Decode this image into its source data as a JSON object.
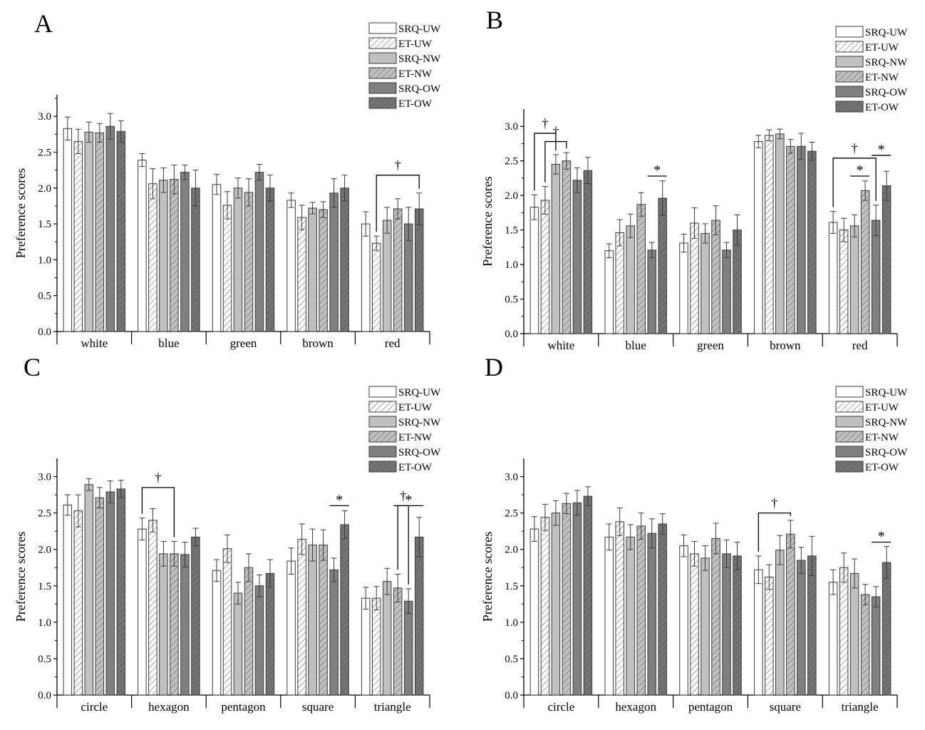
{
  "figure": {
    "series": [
      {
        "name": "SRQ-UW",
        "fill": "#ffffff",
        "hatch": false
      },
      {
        "name": "ET-UW",
        "fill": "#ffffff",
        "hatch": true
      },
      {
        "name": "SRQ-NW",
        "fill": "#c0c0c0",
        "hatch": false
      },
      {
        "name": "ET-NW",
        "fill": "#c0c0c0",
        "hatch": true
      },
      {
        "name": "SRQ-OW",
        "fill": "#808080",
        "hatch": false
      },
      {
        "name": "ET-OW",
        "fill": "#737373",
        "hatch": true
      }
    ],
    "colors": {
      "axis": "#000000",
      "bar_edge": "#3a3a3a",
      "hatch_line": "#555555",
      "error_bar": "#3a3a3a"
    }
  },
  "chart_data": [
    {
      "panel": "A",
      "type": "bar",
      "ylabel": "Preference scores",
      "xlabel": "",
      "ylim": [
        0,
        3.3
      ],
      "yticks": [
        "0.0",
        "0.5",
        "1.0",
        "1.5",
        "2.0",
        "2.5",
        "3.0"
      ],
      "categories": [
        "white",
        "blue",
        "green",
        "brown",
        "red"
      ],
      "series": [
        {
          "name": "SRQ-UW",
          "values": [
            2.83,
            2.39,
            2.05,
            1.83,
            1.5
          ],
          "errors": [
            0.16,
            0.09,
            0.14,
            0.1,
            0.17
          ]
        },
        {
          "name": "ET-UW",
          "values": [
            2.65,
            2.06,
            1.76,
            1.59,
            1.23
          ],
          "errors": [
            0.17,
            0.21,
            0.19,
            0.17,
            0.1
          ]
        },
        {
          "name": "SRQ-NW",
          "values": [
            2.78,
            2.11,
            2.0,
            1.72,
            1.55
          ],
          "errors": [
            0.14,
            0.17,
            0.14,
            0.08,
            0.18
          ]
        },
        {
          "name": "ET-NW",
          "values": [
            2.77,
            2.12,
            1.94,
            1.7,
            1.71
          ],
          "errors": [
            0.13,
            0.2,
            0.19,
            0.11,
            0.14
          ]
        },
        {
          "name": "SRQ-OW",
          "values": [
            2.86,
            2.22,
            2.22,
            1.93,
            1.5
          ],
          "errors": [
            0.18,
            0.1,
            0.11,
            0.2,
            0.23
          ]
        },
        {
          "name": "ET-OW",
          "values": [
            2.79,
            2.0,
            2.0,
            2.0,
            1.71
          ],
          "errors": [
            0.15,
            0.25,
            0.18,
            0.18,
            0.22
          ]
        }
      ],
      "annotations": [
        {
          "label": "†",
          "kind": "bracket",
          "category": "red",
          "from": "ET-UW",
          "to": "ET-OW",
          "at": 2.18
        }
      ]
    },
    {
      "panel": "B",
      "type": "bar",
      "ylabel": "Preference scores",
      "xlabel": "",
      "ylim": [
        0,
        3.25
      ],
      "yticks": [
        "0.0",
        "0.5",
        "1.0",
        "1.5",
        "2.0",
        "2.5",
        "3.0"
      ],
      "categories": [
        "white",
        "blue",
        "green",
        "brown",
        "red"
      ],
      "series": [
        {
          "name": "SRQ-UW",
          "values": [
            1.83,
            1.2,
            1.31,
            2.78,
            1.61
          ],
          "errors": [
            0.18,
            0.1,
            0.13,
            0.09,
            0.16
          ]
        },
        {
          "name": "ET-UW",
          "values": [
            1.93,
            1.46,
            1.6,
            2.87,
            1.5
          ],
          "errors": [
            0.2,
            0.19,
            0.22,
            0.08,
            0.17
          ]
        },
        {
          "name": "SRQ-NW",
          "values": [
            2.45,
            1.56,
            1.45,
            2.89,
            1.56
          ],
          "errors": [
            0.14,
            0.17,
            0.14,
            0.07,
            0.16
          ]
        },
        {
          "name": "ET-NW",
          "values": [
            2.5,
            1.87,
            1.64,
            2.71,
            2.07
          ],
          "errors": [
            0.12,
            0.17,
            0.21,
            0.1,
            0.14
          ]
        },
        {
          "name": "SRQ-OW",
          "values": [
            2.22,
            1.21,
            1.21,
            2.71,
            1.64
          ],
          "errors": [
            0.18,
            0.11,
            0.11,
            0.19,
            0.22
          ]
        },
        {
          "name": "ET-OW",
          "values": [
            2.36,
            1.96,
            1.5,
            2.64,
            2.14
          ],
          "errors": [
            0.19,
            0.25,
            0.22,
            0.13,
            0.21
          ]
        }
      ],
      "annotations": [
        {
          "label": "†",
          "kind": "bracket",
          "category": "white",
          "from": "SRQ-UW",
          "to": "SRQ-NW",
          "at": 2.9
        },
        {
          "label": "†",
          "kind": "bracket",
          "category": "white",
          "from": "ET-UW",
          "to": "ET-NW",
          "at": 2.78
        },
        {
          "label": "*",
          "kind": "line",
          "category": "blue",
          "from": "SRQ-OW",
          "to": "ET-OW",
          "at": 2.28
        },
        {
          "label": "†",
          "kind": "bracket",
          "category": "red",
          "from": "SRQ-UW",
          "to": "SRQ-OW",
          "at": 2.54
        },
        {
          "label": "*",
          "kind": "line",
          "category": "red",
          "from": "SRQ-NW",
          "to": "ET-NW",
          "at": 2.28
        },
        {
          "label": "*",
          "kind": "line",
          "category": "red",
          "from": "SRQ-OW",
          "to": "ET-OW",
          "at": 2.58
        }
      ]
    },
    {
      "panel": "C",
      "type": "bar",
      "ylabel": "Preference scores",
      "xlabel": "",
      "ylim": [
        0,
        3.25
      ],
      "yticks": [
        "0.0",
        "0.5",
        "1.0",
        "1.5",
        "2.0",
        "2.5",
        "3.0"
      ],
      "categories": [
        "circle",
        "hexagon",
        "pentagon",
        "square",
        "triangle"
      ],
      "series": [
        {
          "name": "SRQ-UW",
          "values": [
            2.61,
            2.28,
            1.71,
            1.84,
            1.33
          ],
          "errors": [
            0.14,
            0.15,
            0.15,
            0.18,
            0.15
          ]
        },
        {
          "name": "ET-UW",
          "values": [
            2.53,
            2.4,
            2.01,
            2.14,
            1.33
          ],
          "errors": [
            0.22,
            0.16,
            0.19,
            0.21,
            0.16
          ]
        },
        {
          "name": "SRQ-NW",
          "values": [
            2.89,
            1.94,
            1.4,
            2.06,
            1.56
          ],
          "errors": [
            0.08,
            0.17,
            0.15,
            0.22,
            0.18
          ]
        },
        {
          "name": "ET-NW",
          "values": [
            2.71,
            1.94,
            1.75,
            2.06,
            1.47
          ],
          "errors": [
            0.14,
            0.17,
            0.19,
            0.21,
            0.19
          ]
        },
        {
          "name": "SRQ-OW",
          "values": [
            2.79,
            1.93,
            1.5,
            1.72,
            1.29
          ],
          "errors": [
            0.15,
            0.17,
            0.15,
            0.16,
            0.17
          ]
        },
        {
          "name": "ET-OW",
          "values": [
            2.83,
            2.17,
            1.67,
            2.34,
            2.17
          ],
          "errors": [
            0.12,
            0.12,
            0.19,
            0.19,
            0.27
          ]
        }
      ],
      "annotations": [
        {
          "label": "†",
          "kind": "bracket",
          "category": "hexagon",
          "from": "SRQ-UW",
          "to": "ET-NW",
          "at": 2.85
        },
        {
          "label": "*",
          "kind": "line",
          "category": "square",
          "from": "SRQ-OW",
          "to": "ET-OW",
          "at": 2.6
        },
        {
          "label": "†",
          "kind": "bracket",
          "category": "triangle",
          "from": "SRQ-OW",
          "to": "ET-NW",
          "at": 2.6
        },
        {
          "label": "*",
          "kind": "line",
          "category": "triangle",
          "from": "ET-NW",
          "to": "ET-OW",
          "at": 2.6
        }
      ]
    },
    {
      "panel": "D",
      "type": "bar",
      "ylabel": "Preference scores",
      "xlabel": "",
      "ylim": [
        0,
        3.25
      ],
      "yticks": [
        "0.0",
        "0.5",
        "1.0",
        "1.5",
        "2.0",
        "2.5",
        "3.0"
      ],
      "categories": [
        "circle",
        "hexagon",
        "pentagon",
        "square",
        "triangle"
      ],
      "series": [
        {
          "name": "SRQ-UW",
          "values": [
            2.28,
            2.17,
            2.05,
            1.72,
            1.55
          ],
          "errors": [
            0.17,
            0.18,
            0.15,
            0.19,
            0.17
          ]
        },
        {
          "name": "ET-UW",
          "values": [
            2.44,
            2.38,
            1.94,
            1.62,
            1.75
          ],
          "errors": [
            0.18,
            0.19,
            0.17,
            0.17,
            0.2
          ]
        },
        {
          "name": "SRQ-NW",
          "values": [
            2.5,
            2.17,
            1.88,
            1.99,
            1.67
          ],
          "errors": [
            0.17,
            0.17,
            0.17,
            0.2,
            0.2
          ]
        },
        {
          "name": "ET-NW",
          "values": [
            2.63,
            2.32,
            2.15,
            2.21,
            1.38
          ],
          "errors": [
            0.14,
            0.18,
            0.21,
            0.19,
            0.14
          ]
        },
        {
          "name": "SRQ-OW",
          "values": [
            2.64,
            2.22,
            1.94,
            1.85,
            1.35
          ],
          "errors": [
            0.17,
            0.2,
            0.19,
            0.18,
            0.14
          ]
        },
        {
          "name": "ET-OW",
          "values": [
            2.73,
            2.35,
            1.91,
            1.91,
            1.82
          ],
          "errors": [
            0.13,
            0.14,
            0.19,
            0.27,
            0.22
          ]
        }
      ],
      "annotations": [
        {
          "label": "†",
          "kind": "bracket",
          "category": "square",
          "from": "SRQ-UW",
          "to": "ET-NW",
          "at": 2.5
        },
        {
          "label": "*",
          "kind": "line",
          "category": "triangle",
          "from": "SRQ-OW",
          "to": "ET-OW",
          "at": 2.1
        }
      ]
    }
  ]
}
